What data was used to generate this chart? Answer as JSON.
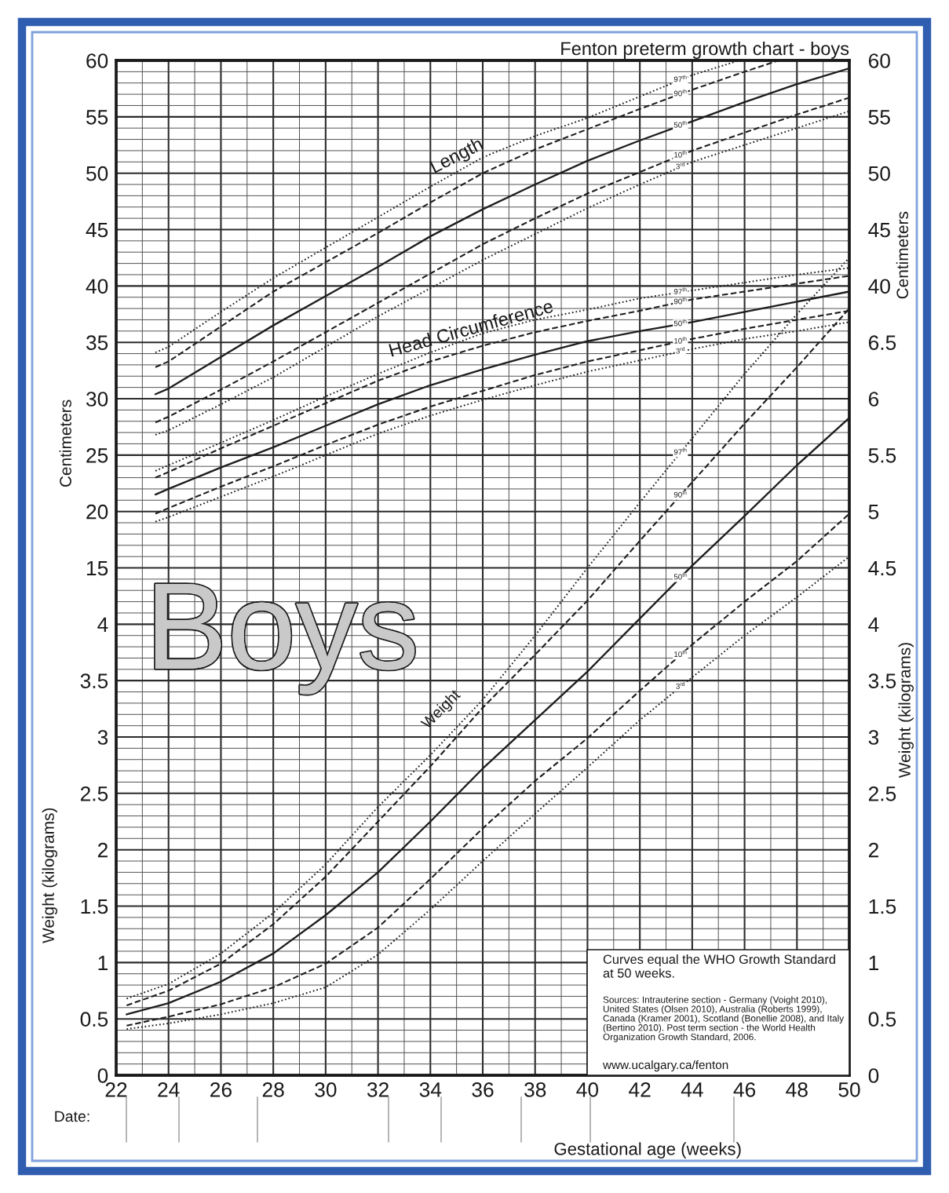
{
  "chart_data": [
    {
      "type": "line",
      "title": "Fenton preterm growth chart - boys",
      "xlabel": "Gestational age (weeks)",
      "ylabel": "Centimeters",
      "y2label": "Centimeters",
      "xlim": [
        22,
        50
      ],
      "xticks": [
        22,
        {
          "value": 23,
          "label": null
        },
        24,
        {
          "value": 25,
          "label": null
        },
        26,
        {
          "value": 27,
          "label": null
        },
        28,
        {
          "value": 29,
          "label": null
        },
        30,
        {
          "value": 31,
          "label": null
        },
        32,
        {
          "value": 33,
          "label": null
        },
        34,
        {
          "value": 35,
          "label": null
        },
        36,
        {
          "value": 37,
          "label": null
        },
        38,
        {
          "value": 39,
          "label": null
        },
        40,
        {
          "value": 41,
          "label": null
        },
        42,
        {
          "value": 43,
          "label": null
        },
        44,
        {
          "value": 45,
          "label": null
        },
        46,
        {
          "value": 47,
          "label": null
        },
        48,
        {
          "value": 49,
          "label": null
        },
        50
      ],
      "ylim": [
        -30,
        60
      ],
      "yticks": [
        15,
        {
          "value": 16,
          "label": null
        },
        {
          "value": 17,
          "label": null
        },
        {
          "value": 18,
          "label": null
        },
        {
          "value": 19,
          "label": null
        },
        20,
        {
          "value": 21,
          "label": null
        },
        {
          "value": 22,
          "label": null
        },
        {
          "value": 23,
          "label": null
        },
        {
          "value": 24,
          "label": null
        },
        25,
        {
          "value": 26,
          "label": null
        },
        {
          "value": 27,
          "label": null
        },
        {
          "value": 28,
          "label": null
        },
        {
          "value": 29,
          "label": null
        },
        30,
        {
          "value": 31,
          "label": null
        },
        {
          "value": 32,
          "label": null
        },
        {
          "value": 33,
          "label": null
        },
        {
          "value": 34,
          "label": null
        },
        35,
        {
          "value": 36,
          "label": null
        },
        {
          "value": 37,
          "label": null
        },
        {
          "value": 38,
          "label": null
        },
        {
          "value": 39,
          "label": null
        },
        40,
        {
          "value": 41,
          "label": null
        },
        {
          "value": 42,
          "label": null
        },
        {
          "value": 43,
          "label": null
        },
        {
          "value": 44,
          "label": null
        },
        45,
        {
          "value": 46,
          "label": null
        },
        {
          "value": 47,
          "label": null
        },
        {
          "value": 48,
          "label": null
        },
        {
          "value": 49,
          "label": null
        },
        50,
        {
          "value": 51,
          "label": null
        },
        {
          "value": 52,
          "label": null
        },
        {
          "value": 53,
          "label": null
        },
        {
          "value": 54,
          "label": null
        },
        55,
        {
          "value": 56,
          "label": null
        },
        {
          "value": 57,
          "label": null
        },
        {
          "value": 58,
          "label": null
        },
        {
          "value": 59,
          "label": null
        },
        60
      ],
      "y2lim": [
        -30,
        60
      ],
      "y2ticks": [
        40,
        45,
        50,
        55,
        60
      ],
      "grid": true,
      "series": [
        {
          "name": "97$^{th}$",
          "color": "#1e1e1e",
          "line_style": "dotted",
          "x": [
            23.5,
            24,
            26,
            28,
            30,
            32,
            34,
            36,
            38,
            40,
            42,
            44,
            45.8
          ],
          "values": [
            34.1,
            34.6,
            37.7,
            40.7,
            43.4,
            46.1,
            48.8,
            51.4,
            53.3,
            54.9,
            56.8,
            58.7,
            60
          ]
        },
        {
          "name": "90$^{th}$",
          "color": "#1e1e1e",
          "line_style": "dashed",
          "x": [
            23.5,
            24,
            26,
            28,
            30,
            32,
            34,
            36,
            38,
            40,
            42,
            44,
            46,
            47.3
          ],
          "values": [
            32.8,
            33.3,
            36.4,
            39.5,
            42.1,
            44.7,
            47.4,
            50.0,
            52.1,
            53.9,
            55.7,
            57.4,
            59.0,
            60
          ]
        },
        {
          "name": "50$^{th}$",
          "color": "#1e1e1e",
          "line_style": "solid",
          "x": [
            23.5,
            24,
            26,
            28,
            30,
            32,
            34,
            36,
            38,
            40,
            42,
            44,
            46,
            48,
            50
          ],
          "values": [
            30.4,
            30.9,
            33.7,
            36.5,
            39.1,
            41.7,
            44.4,
            46.8,
            49.0,
            51.1,
            52.9,
            54.6,
            56.3,
            57.9,
            59.3
          ]
        },
        {
          "name": "10$^{th}$",
          "color": "#1e1e1e",
          "line_style": "dashed",
          "x": [
            23.5,
            24,
            26,
            28,
            30,
            32,
            34,
            36,
            38,
            40,
            42,
            44,
            46,
            48,
            50
          ],
          "values": [
            27.9,
            28.4,
            30.8,
            33.3,
            35.9,
            38.5,
            41.1,
            43.7,
            46.0,
            48.2,
            50.1,
            52.0,
            53.6,
            55.2,
            56.7
          ]
        },
        {
          "name": "3$^{rd}$",
          "color": "#1e1e1e",
          "line_style": "dotted",
          "x": [
            23.5,
            24,
            26,
            28,
            30,
            32,
            34,
            36,
            38,
            40,
            42,
            44,
            46,
            48,
            50
          ],
          "values": [
            26.8,
            27.2,
            29.5,
            31.9,
            34.6,
            37.3,
            39.8,
            42.3,
            44.6,
            46.9,
            49.0,
            51.0,
            52.5,
            54.0,
            55.5
          ]
        },
        {
          "name": "97$^{th}$",
          "color": "#1e1e1e",
          "line_style": "dotted",
          "x": [
            23.5,
            24,
            26,
            28,
            30,
            32,
            34,
            36,
            38,
            40,
            42,
            44,
            46,
            48,
            50
          ],
          "values": [
            23.6,
            24.1,
            26.1,
            28.1,
            30.2,
            32.2,
            34.1,
            35.8,
            37.0,
            37.9,
            38.9,
            39.6,
            40.3,
            41.0,
            41.6
          ]
        },
        {
          "name": "90$^{th}$",
          "color": "#1e1e1e",
          "line_style": "dashed",
          "x": [
            23.5,
            24,
            26,
            28,
            30,
            32,
            34,
            36,
            38,
            40,
            42,
            44,
            46,
            48,
            50
          ],
          "values": [
            23.0,
            23.5,
            25.6,
            27.6,
            29.6,
            31.6,
            33.3,
            34.7,
            35.9,
            36.9,
            37.8,
            38.8,
            39.5,
            40.2,
            40.9
          ]
        },
        {
          "name": "50$^{th}$",
          "color": "#1e1e1e",
          "line_style": "solid",
          "x": [
            23.5,
            24,
            26,
            28,
            30,
            32,
            34,
            36,
            38,
            40,
            42,
            44,
            46,
            48,
            50
          ],
          "values": [
            21.5,
            22.0,
            23.9,
            25.7,
            27.6,
            29.5,
            31.2,
            32.6,
            33.9,
            35.1,
            36.0,
            36.8,
            37.7,
            38.6,
            39.5
          ]
        },
        {
          "name": "10$^{th}$",
          "color": "#1e1e1e",
          "line_style": "dashed",
          "x": [
            23.5,
            24,
            26,
            28,
            30,
            32,
            34,
            36,
            38,
            40,
            42,
            44,
            46,
            48,
            50
          ],
          "values": [
            19.8,
            20.3,
            22.2,
            24.0,
            25.9,
            27.7,
            29.3,
            30.7,
            32.1,
            33.3,
            34.3,
            35.3,
            36.2,
            37.0,
            37.8
          ]
        },
        {
          "name": "3$^{rd}$",
          "color": "#1e1e1e",
          "line_style": "dotted",
          "x": [
            23.5,
            24,
            26,
            28,
            30,
            32,
            34,
            36,
            38,
            40,
            42,
            44,
            46,
            48,
            50
          ],
          "values": [
            19.1,
            19.5,
            21.3,
            23.1,
            25.0,
            26.9,
            28.5,
            29.9,
            31.2,
            32.4,
            33.4,
            34.4,
            35.3,
            36.0,
            36.8
          ]
        }
      ],
      "annotations": [
        "Length",
        "Head Circumference",
        "Date:"
      ]
    },
    {
      "type": "line",
      "ylabel": "Weight (kilograms)",
      "y2label": "Weight (kilograms)",
      "xlim": [
        22,
        50
      ],
      "ylim": [
        0,
        9
      ],
      "yticks": [
        0,
        {
          "value": 0.1,
          "label": null
        },
        {
          "value": 0.2,
          "label": null
        },
        {
          "value": 0.3,
          "label": null
        },
        {
          "value": 0.4,
          "label": null
        },
        0.5,
        {
          "value": 0.6,
          "label": null
        },
        {
          "value": 0.7,
          "label": null
        },
        {
          "value": 0.8,
          "label": null
        },
        {
          "value": 0.9,
          "label": null
        },
        1,
        {
          "value": 1.1,
          "label": null
        },
        {
          "value": 1.2,
          "label": null
        },
        {
          "value": 1.3,
          "label": null
        },
        {
          "value": 1.4,
          "label": null
        },
        1.5,
        {
          "value": 1.6,
          "label": null
        },
        {
          "value": 1.7,
          "label": null
        },
        {
          "value": 1.8,
          "label": null
        },
        {
          "value": 1.9,
          "label": null
        },
        2,
        {
          "value": 2.1,
          "label": null
        },
        {
          "value": 2.2,
          "label": null
        },
        {
          "value": 2.3,
          "label": null
        },
        {
          "value": 2.4,
          "label": null
        },
        2.5,
        {
          "value": 2.6,
          "label": null
        },
        {
          "value": 2.7,
          "label": null
        },
        {
          "value": 2.8,
          "label": null
        },
        {
          "value": 2.9,
          "label": null
        },
        3,
        {
          "value": 3.1,
          "label": null
        },
        {
          "value": 3.2,
          "label": null
        },
        {
          "value": 3.3,
          "label": null
        },
        {
          "value": 3.4,
          "label": null
        },
        3.5,
        {
          "value": 3.6,
          "label": null
        },
        {
          "value": 3.7,
          "label": null
        },
        {
          "value": 3.8,
          "label": null
        },
        {
          "value": 3.9,
          "label": null
        },
        4,
        {
          "value": 4.1,
          "label": null
        },
        {
          "value": 4.2,
          "label": null
        },
        {
          "value": 4.3,
          "label": null
        },
        {
          "value": 4.4,
          "label": null
        }
      ],
      "y2lim": [
        0,
        9
      ],
      "y2ticks": [
        0,
        0.5,
        1,
        1.5,
        2,
        2.5,
        3,
        3.5,
        4,
        4.5,
        5,
        5.5,
        6,
        6.5
      ],
      "grid": "y",
      "tick_labels": "y",
      "series": [
        {
          "name": "97$^{th}$",
          "color": "#1e1e1e",
          "line_style": "dotted",
          "x": [
            22.4,
            24,
            26,
            28,
            30,
            32,
            34,
            36,
            38,
            40,
            42,
            44,
            46,
            48,
            50
          ],
          "values": [
            0.68,
            0.81,
            1.08,
            1.44,
            1.87,
            2.38,
            2.84,
            3.33,
            3.9,
            4.5,
            5.08,
            5.65,
            6.22,
            6.75,
            7.25
          ]
        },
        {
          "name": "90$^{th}$",
          "color": "#1e1e1e",
          "line_style": "dashed",
          "x": [
            22.4,
            24,
            26,
            28,
            30,
            32,
            34,
            36,
            38,
            40,
            42,
            44,
            46,
            48,
            50
          ],
          "values": [
            0.62,
            0.75,
            0.99,
            1.34,
            1.76,
            2.25,
            2.74,
            3.26,
            3.73,
            4.21,
            4.74,
            5.26,
            5.78,
            6.28,
            6.8
          ]
        },
        {
          "name": "50$^{th}$",
          "color": "#1e1e1e",
          "line_style": "solid",
          "x": [
            22.4,
            24,
            26,
            28,
            30,
            32,
            34,
            36,
            38,
            40,
            42,
            44,
            46,
            48,
            50
          ],
          "values": [
            0.54,
            0.64,
            0.83,
            1.08,
            1.42,
            1.8,
            2.25,
            2.72,
            3.15,
            3.58,
            4.05,
            4.52,
            4.96,
            5.41,
            5.83
          ]
        },
        {
          "name": "10$^{th}$",
          "color": "#1e1e1e",
          "line_style": "dashed",
          "x": [
            22.4,
            24,
            26,
            28,
            30,
            32,
            34,
            36,
            38,
            40,
            42,
            44,
            46,
            48,
            50
          ],
          "values": [
            0.44,
            0.52,
            0.63,
            0.78,
            0.99,
            1.31,
            1.74,
            2.19,
            2.61,
            2.99,
            3.41,
            3.82,
            4.2,
            4.56,
            4.98
          ]
        },
        {
          "name": "3$^{rd}$",
          "color": "#1e1e1e",
          "line_style": "dotted",
          "x": [
            22.4,
            24,
            26,
            28,
            30,
            32,
            34,
            36,
            38,
            40,
            42,
            44,
            46,
            48,
            50
          ],
          "values": [
            0.41,
            0.46,
            0.54,
            0.64,
            0.78,
            1.07,
            1.47,
            1.9,
            2.32,
            2.73,
            3.15,
            3.53,
            3.9,
            4.24,
            4.6
          ]
        }
      ],
      "annotations": [
        "Weight",
        "Boys",
        "Curves equal the WHO Growth Standard at 50 weeks.",
        "Sources: Intrauterine section - Germany (Voight 2010), United States (Olsen 2010), Australia (Roberts 1999), Canada (Kramer 2001), Scotland (Bonellie 2008), and Italy (Bertino 2010). Post term section - the World Health Organization Growth Standard, 2006.",
        "www.ucalgary.ca/fenton"
      ]
    }
  ]
}
